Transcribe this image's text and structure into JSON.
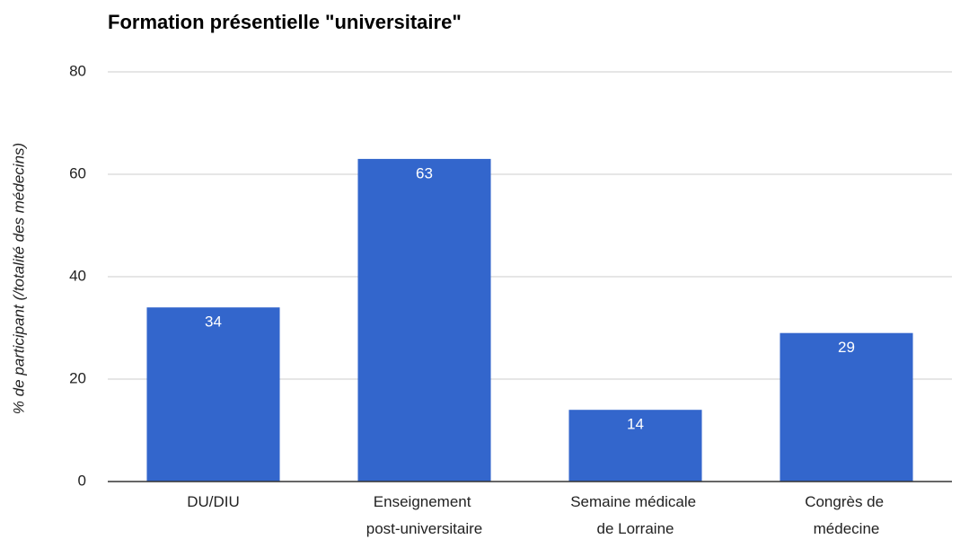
{
  "chart_data": {
    "type": "bar",
    "title": "Formation présentielle \"universitaire\"",
    "y_label": "% de participant (/totalité des médecins)",
    "categories": [
      "DU/DIU",
      "Enseignement post-universitaire",
      "Semaine médicale de Lorraine",
      "Congrès de médecine"
    ],
    "values": [
      34,
      63,
      14,
      29
    ],
    "color": "#3366cc",
    "ylim": [
      0,
      80
    ],
    "yticks": [
      0,
      20,
      40,
      60,
      80
    ],
    "grid": true
  }
}
